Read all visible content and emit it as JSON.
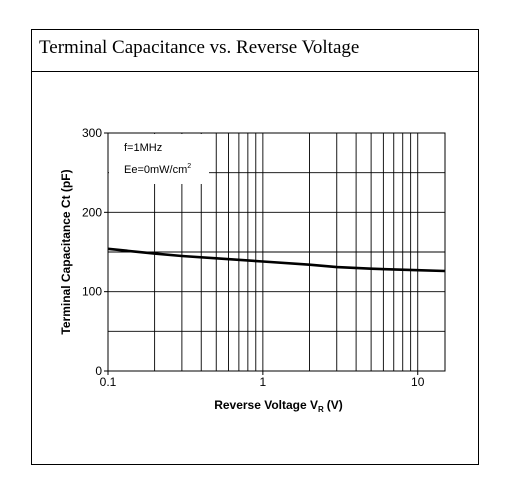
{
  "header": {
    "title": "Terminal Capacitance vs. Reverse Voltage"
  },
  "chart_data": {
    "type": "line",
    "title": "Terminal Capacitance vs. Reverse Voltage",
    "xlabel": "Reverse Voltage V",
    "xlabel_subscript": "R",
    "xlabel_unit": "(V)",
    "ylabel": "Terminal Capacitance Ct (pF)",
    "xscale": "log",
    "xlim": [
      0.1,
      15
    ],
    "ylim": [
      0,
      300
    ],
    "x_ticks": [
      0.1,
      1,
      10
    ],
    "x_tick_labels": [
      "0.1",
      "1",
      "10"
    ],
    "y_ticks": [
      0,
      100,
      200,
      300
    ],
    "y_tick_labels": [
      "0",
      "100",
      "200",
      "300"
    ],
    "y_minor_gridlines": [
      50,
      150,
      250
    ],
    "grid": true,
    "annotations": [
      "f=1MHz",
      "Ee=0mW/cm",
      "2"
    ],
    "series": [
      {
        "x": [
          0.1,
          0.2,
          0.3,
          0.5,
          1,
          2,
          3,
          5,
          10,
          15
        ],
        "y": [
          154,
          148,
          145,
          142,
          138,
          134,
          131,
          129,
          127,
          126
        ]
      }
    ]
  }
}
